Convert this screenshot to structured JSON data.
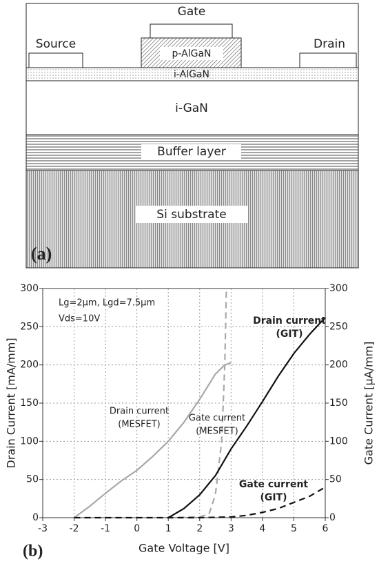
{
  "diagram": {
    "labels": {
      "gate": "Gate",
      "source": "Source",
      "drain": "Drain",
      "p_algan": "p-AlGaN",
      "i_algan": "i-AlGaN",
      "i_gan": "i-GaN",
      "buffer": "Buffer layer",
      "substrate": "Si substrate"
    },
    "panel_label": "(a)"
  },
  "chart_data": {
    "type": "line",
    "panel_label": "(b)",
    "xlabel": "Gate Voltage [V]",
    "ylabel": "Drain Current [mA/mm]",
    "y2label": "Gate Current [μA/mm]",
    "xlim": [
      -3,
      6
    ],
    "xticks": [
      -3,
      -2,
      -1,
      0,
      1,
      2,
      3,
      4,
      5,
      6
    ],
    "ylim": [
      0,
      300
    ],
    "yticks": [
      0,
      50,
      100,
      150,
      200,
      250,
      300
    ],
    "y2lim": [
      0,
      300
    ],
    "y2ticks": [
      0,
      50,
      100,
      150,
      200,
      250,
      300
    ],
    "grid": true,
    "annotations": [
      "Lg=2μm, Lgd=7.5μm",
      "Vds=10V"
    ],
    "series": [
      {
        "label_lines": [
          "Drain current",
          "(MESFET)"
        ],
        "color": "#a8a8a8",
        "dash": false,
        "axis": "y",
        "x": [
          -2,
          -1.5,
          -1,
          -0.5,
          0,
          0.5,
          1,
          1.5,
          2,
          2.5,
          2.8,
          3
        ],
        "values": [
          0,
          15,
          32,
          48,
          62,
          80,
          100,
          125,
          155,
          188,
          200,
          203
        ]
      },
      {
        "label_lines": [
          "Gate current",
          "(MESFET)"
        ],
        "color": "#a8a8a8",
        "dash": true,
        "axis": "y2",
        "x": [
          1,
          2,
          2.3,
          2.5,
          2.7,
          2.8,
          2.85
        ],
        "values": [
          0,
          1,
          5,
          30,
          100,
          200,
          300
        ]
      },
      {
        "label_lines": [
          "Drain current",
          "(GIT)"
        ],
        "color": "#111111",
        "dash": false,
        "axis": "y",
        "x": [
          1,
          1.5,
          2,
          2.5,
          3,
          3.5,
          4,
          4.5,
          5,
          5.5,
          6
        ],
        "values": [
          0,
          12,
          30,
          55,
          90,
          120,
          152,
          185,
          215,
          240,
          262
        ]
      },
      {
        "label_lines": [
          "Gate current",
          "(GIT)"
        ],
        "color": "#111111",
        "dash": true,
        "axis": "y2",
        "x": [
          -2,
          1,
          2,
          3,
          3.5,
          4,
          4.5,
          5,
          5.5,
          6
        ],
        "values": [
          0,
          0,
          0,
          1,
          3,
          7,
          12,
          20,
          28,
          40
        ]
      }
    ]
  }
}
